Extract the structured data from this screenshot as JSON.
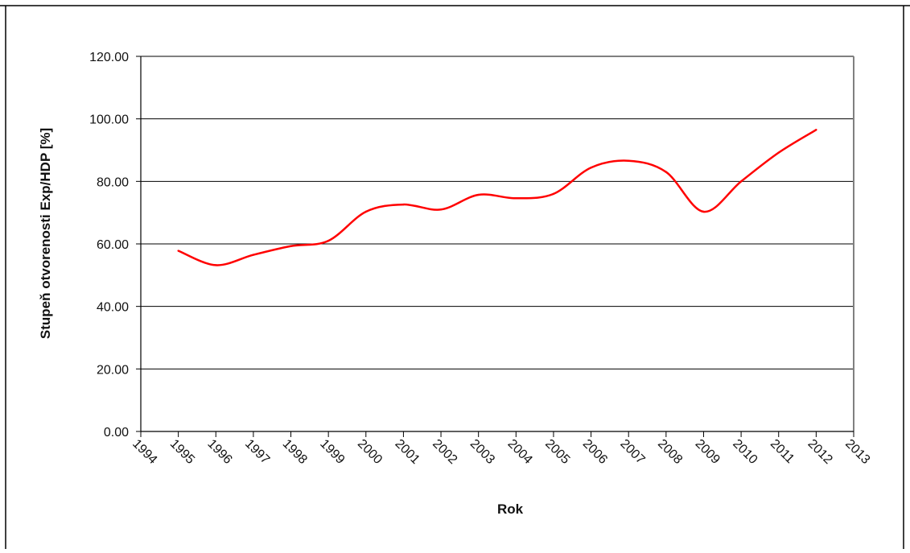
{
  "colors": {
    "series_line": "#ff0000",
    "gridline": "#000000",
    "axis": "#000000",
    "plot_border": "#808080"
  },
  "chart_data": {
    "type": "line",
    "xlabel": "Rok",
    "ylabel": "Stupeň otvorenosti Exp/HDP [%]",
    "ylim": [
      0,
      120
    ],
    "xlim": [
      1994,
      2013
    ],
    "y_ticks": [
      "0.00",
      "20.00",
      "40.00",
      "60.00",
      "80.00",
      "100.00",
      "120.00"
    ],
    "x_ticks": [
      "1994",
      "1995",
      "1996",
      "1997",
      "1998",
      "1999",
      "2000",
      "2001",
      "2002",
      "2003",
      "2004",
      "2005",
      "2006",
      "2007",
      "2008",
      "2009",
      "2010",
      "2011",
      "2012",
      "2013"
    ],
    "grid": true,
    "legend": "none",
    "series": [
      {
        "x": [
          1995,
          1996,
          1997,
          1998,
          1999,
          2000,
          2001,
          2002,
          2003,
          2004,
          2005,
          2006,
          2007,
          2008,
          2009,
          2010,
          2011,
          2012
        ],
        "values": [
          57.8,
          53.2,
          56.5,
          59.3,
          61.0,
          70.3,
          72.6,
          71.0,
          75.7,
          74.6,
          76.0,
          84.4,
          86.6,
          83.0,
          70.3,
          80.0,
          89.2,
          96.5
        ]
      }
    ]
  }
}
